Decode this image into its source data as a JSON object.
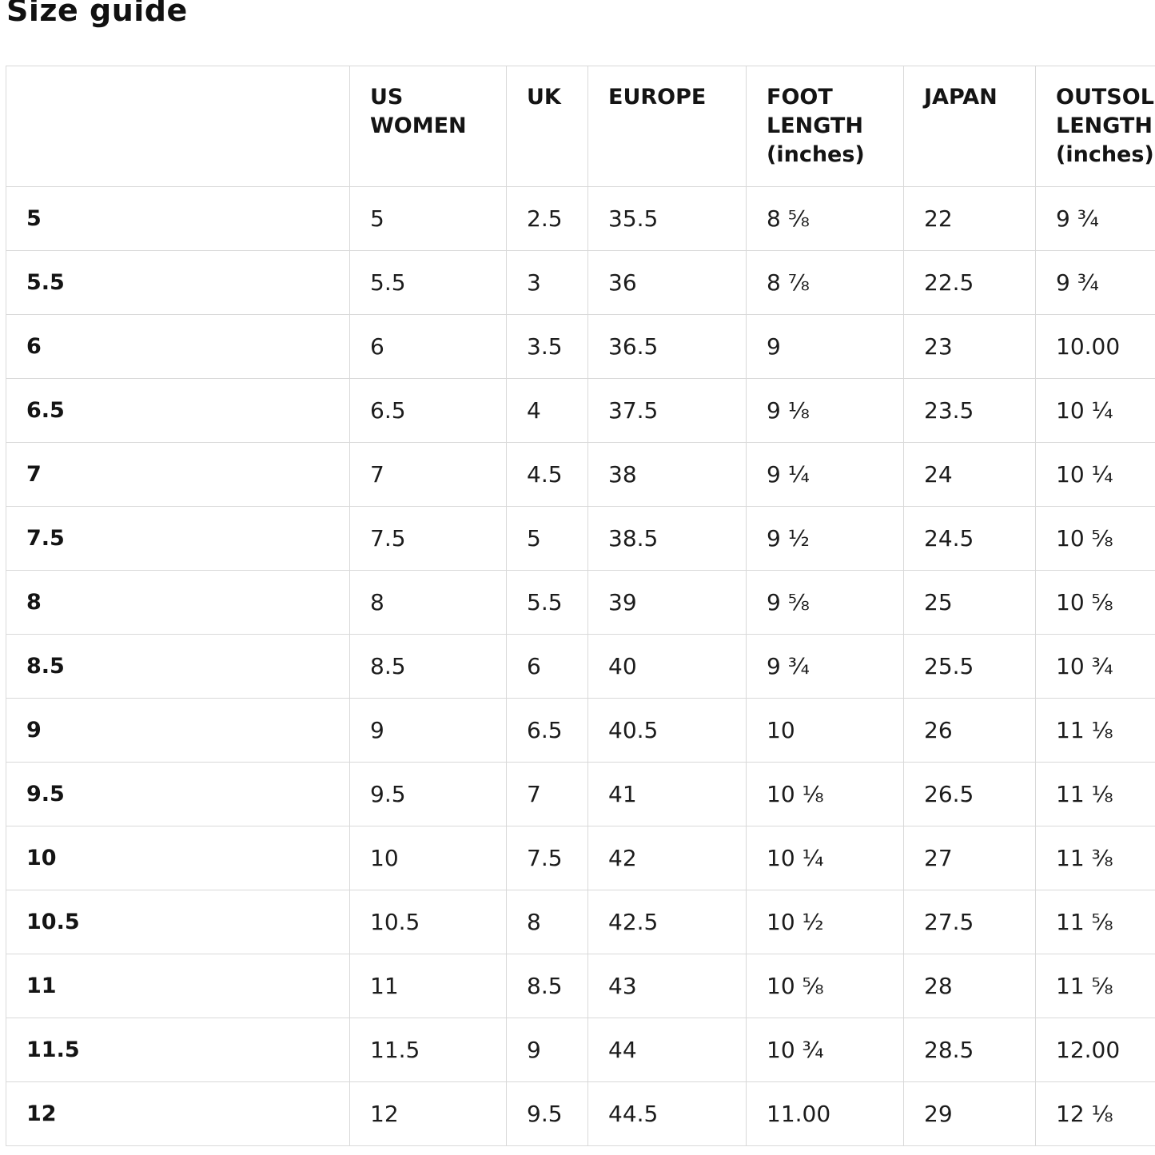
{
  "page": {
    "title": "Size guide"
  },
  "colors": {
    "background": "#ffffff",
    "text": "#1c1c1c",
    "heading_text": "#111111",
    "table_border": "#d9d9d9"
  },
  "table": {
    "columns": [
      {
        "key": "size",
        "label": ""
      },
      {
        "key": "us-women",
        "label": "US WOMEN"
      },
      {
        "key": "uk",
        "label": "UK"
      },
      {
        "key": "europe",
        "label": "EUROPE"
      },
      {
        "key": "foot-length",
        "label": "FOOT LENGTH (inches)"
      },
      {
        "key": "japan",
        "label": "JAPAN"
      },
      {
        "key": "outsole-length",
        "label": "OUTSOLE LENGTH (inches)"
      }
    ],
    "rows": [
      [
        "5",
        "5",
        "2.5",
        "35.5",
        "8 ⅝",
        "22",
        "9 ¾"
      ],
      [
        "5.5",
        "5.5",
        "3",
        "36",
        "8 ⅞",
        "22.5",
        "9 ¾"
      ],
      [
        "6",
        "6",
        "3.5",
        "36.5",
        "9",
        "23",
        "10.00"
      ],
      [
        "6.5",
        "6.5",
        "4",
        "37.5",
        "9 ⅛",
        "23.5",
        "10 ¼"
      ],
      [
        "7",
        "7",
        "4.5",
        "38",
        "9 ¼",
        "24",
        "10 ¼"
      ],
      [
        "7.5",
        "7.5",
        "5",
        "38.5",
        "9 ½",
        "24.5",
        "10 ⅝"
      ],
      [
        "8",
        "8",
        "5.5",
        "39",
        "9 ⅝",
        "25",
        "10 ⅝"
      ],
      [
        "8.5",
        "8.5",
        "6",
        "40",
        "9 ¾",
        "25.5",
        "10 ¾"
      ],
      [
        "9",
        "9",
        "6.5",
        "40.5",
        "10",
        "26",
        "11 ⅛"
      ],
      [
        "9.5",
        "9.5",
        "7",
        "41",
        "10 ⅛",
        "26.5",
        "11 ⅛"
      ],
      [
        "10",
        "10",
        "7.5",
        "42",
        "10 ¼",
        "27",
        "11 ⅜"
      ],
      [
        "10.5",
        "10.5",
        "8",
        "42.5",
        "10 ½",
        "27.5",
        "11 ⅝"
      ],
      [
        "11",
        "11",
        "8.5",
        "43",
        "10 ⅝",
        "28",
        "11 ⅝"
      ],
      [
        "11.5",
        "11.5",
        "9",
        "44",
        "10 ¾",
        "28.5",
        "12.00"
      ],
      [
        "12",
        "12",
        "9.5",
        "44.5",
        "11.00",
        "29",
        "12 ⅛"
      ]
    ]
  }
}
